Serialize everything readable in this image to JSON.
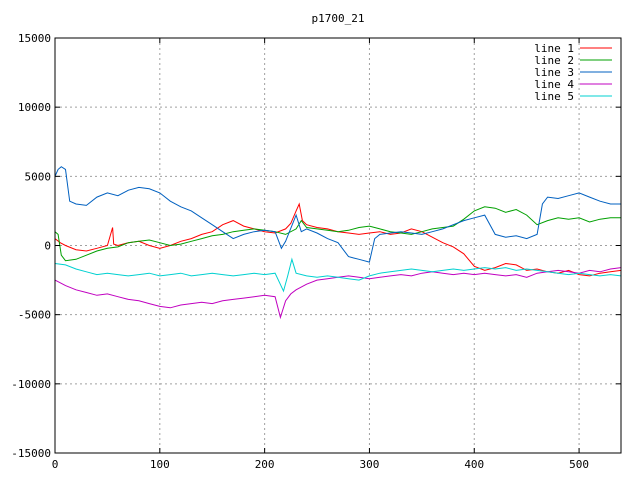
{
  "chart_data": {
    "type": "line",
    "title": "p1700_21",
    "xlim": [
      0,
      540
    ],
    "ylim": [
      -15000,
      15000
    ],
    "x_ticks": [
      0,
      100,
      200,
      300,
      400,
      500
    ],
    "y_ticks": [
      -15000,
      -10000,
      -5000,
      0,
      5000,
      10000,
      15000
    ],
    "grid": true,
    "legend_position": "top-right",
    "series": [
      {
        "name": "line 1",
        "color": "#ff0000",
        "x": [
          0,
          5,
          10,
          20,
          30,
          40,
          50,
          55,
          56,
          60,
          70,
          80,
          90,
          100,
          110,
          120,
          130,
          140,
          150,
          160,
          170,
          180,
          190,
          200,
          210,
          220,
          225,
          230,
          233,
          236,
          240,
          250,
          260,
          270,
          280,
          290,
          300,
          310,
          320,
          330,
          340,
          350,
          360,
          370,
          380,
          390,
          400,
          410,
          420,
          430,
          440,
          450,
          460,
          470,
          480,
          490,
          500,
          510,
          520,
          530,
          540
        ],
        "values": [
          500,
          200,
          0,
          -300,
          -400,
          -200,
          0,
          1300,
          100,
          0,
          200,
          300,
          0,
          -200,
          0,
          300,
          500,
          800,
          1000,
          1500,
          1800,
          1400,
          1200,
          1000,
          900,
          1200,
          1600,
          2500,
          3000,
          1800,
          1500,
          1300,
          1200,
          1000,
          900,
          800,
          900,
          1000,
          800,
          900,
          1200,
          1000,
          600,
          200,
          -100,
          -600,
          -1500,
          -1800,
          -1600,
          -1300,
          -1400,
          -1800,
          -1700,
          -1900,
          -2000,
          -1800,
          -2100,
          -2200,
          -2000,
          -1900,
          -1800
        ]
      },
      {
        "name": "line 2",
        "color": "#00a000",
        "x": [
          0,
          3,
          6,
          10,
          20,
          30,
          40,
          50,
          60,
          70,
          80,
          90,
          100,
          110,
          120,
          130,
          140,
          150,
          160,
          170,
          180,
          190,
          200,
          210,
          220,
          230,
          235,
          240,
          250,
          260,
          270,
          280,
          290,
          300,
          310,
          320,
          330,
          340,
          350,
          360,
          370,
          380,
          390,
          400,
          410,
          420,
          430,
          440,
          450,
          460,
          470,
          480,
          490,
          500,
          510,
          520,
          530,
          540
        ],
        "values": [
          1000,
          800,
          -700,
          -1100,
          -1000,
          -700,
          -400,
          -200,
          -100,
          200,
          300,
          400,
          200,
          0,
          100,
          300,
          500,
          700,
          800,
          1000,
          1100,
          1200,
          1100,
          1000,
          800,
          1200,
          1800,
          1300,
          1200,
          1100,
          1000,
          1100,
          1300,
          1400,
          1200,
          1000,
          900,
          800,
          1000,
          1200,
          1300,
          1400,
          1900,
          2500,
          2800,
          2700,
          2400,
          2600,
          2200,
          1500,
          1800,
          2000,
          1900,
          2000,
          1700,
          1900,
          2000,
          2000
        ]
      },
      {
        "name": "line 3",
        "color": "#0060c0",
        "x": [
          0,
          3,
          6,
          10,
          14,
          20,
          30,
          40,
          50,
          60,
          70,
          80,
          90,
          100,
          110,
          120,
          130,
          140,
          150,
          160,
          170,
          180,
          190,
          200,
          210,
          216,
          220,
          230,
          235,
          240,
          250,
          260,
          270,
          280,
          285,
          290,
          300,
          305,
          310,
          320,
          330,
          340,
          350,
          360,
          370,
          380,
          390,
          400,
          410,
          420,
          430,
          440,
          450,
          460,
          465,
          470,
          480,
          490,
          500,
          510,
          520,
          530,
          540
        ],
        "values": [
          5000,
          5500,
          5700,
          5500,
          3200,
          3000,
          2900,
          3500,
          3800,
          3600,
          4000,
          4200,
          4100,
          3800,
          3200,
          2800,
          2500,
          2000,
          1500,
          1000,
          500,
          800,
          1000,
          1100,
          1000,
          -200,
          300,
          2200,
          1000,
          1200,
          900,
          500,
          200,
          -800,
          -900,
          -1000,
          -1200,
          500,
          800,
          900,
          1000,
          900,
          800,
          1000,
          1200,
          1500,
          1800,
          2000,
          2200,
          800,
          600,
          700,
          500,
          800,
          3000,
          3500,
          3400,
          3600,
          3800,
          3500,
          3200,
          3000,
          3000
        ]
      },
      {
        "name": "line 4",
        "color": "#c000c0",
        "x": [
          0,
          10,
          20,
          30,
          40,
          50,
          60,
          70,
          80,
          90,
          100,
          110,
          120,
          130,
          140,
          150,
          160,
          170,
          180,
          190,
          200,
          210,
          215,
          220,
          225,
          230,
          240,
          250,
          260,
          270,
          280,
          290,
          300,
          310,
          320,
          330,
          340,
          350,
          360,
          370,
          380,
          390,
          400,
          410,
          420,
          430,
          440,
          450,
          460,
          470,
          480,
          490,
          500,
          510,
          520,
          530,
          540
        ],
        "values": [
          -2500,
          -2900,
          -3200,
          -3400,
          -3600,
          -3500,
          -3700,
          -3900,
          -4000,
          -4200,
          -4400,
          -4500,
          -4300,
          -4200,
          -4100,
          -4200,
          -4000,
          -3900,
          -3800,
          -3700,
          -3600,
          -3700,
          -5200,
          -4000,
          -3500,
          -3200,
          -2800,
          -2500,
          -2400,
          -2300,
          -2200,
          -2300,
          -2400,
          -2300,
          -2200,
          -2100,
          -2200,
          -2000,
          -1900,
          -2000,
          -2100,
          -2000,
          -2100,
          -2000,
          -2100,
          -2200,
          -2100,
          -2300,
          -2000,
          -1900,
          -1800,
          -1900,
          -2000,
          -1800,
          -1900,
          -1700,
          -1600
        ]
      },
      {
        "name": "line 5",
        "color": "#00d0d0",
        "x": [
          0,
          10,
          20,
          30,
          40,
          50,
          60,
          70,
          80,
          90,
          100,
          110,
          120,
          130,
          140,
          150,
          160,
          170,
          180,
          190,
          200,
          210,
          218,
          222,
          226,
          230,
          240,
          250,
          260,
          270,
          280,
          290,
          300,
          310,
          320,
          330,
          340,
          350,
          360,
          370,
          380,
          390,
          400,
          410,
          420,
          430,
          440,
          450,
          460,
          470,
          480,
          490,
          500,
          510,
          520,
          530,
          540
        ],
        "values": [
          -1300,
          -1400,
          -1700,
          -1900,
          -2100,
          -2000,
          -2100,
          -2200,
          -2100,
          -2000,
          -2200,
          -2100,
          -2000,
          -2200,
          -2100,
          -2000,
          -2100,
          -2200,
          -2100,
          -2000,
          -2100,
          -2000,
          -3300,
          -2200,
          -1000,
          -2000,
          -2200,
          -2300,
          -2200,
          -2300,
          -2400,
          -2500,
          -2200,
          -2000,
          -1900,
          -1800,
          -1700,
          -1800,
          -1900,
          -1800,
          -1700,
          -1800,
          -1700,
          -1600,
          -1700,
          -1600,
          -1800,
          -1700,
          -1800,
          -1900,
          -2000,
          -2100,
          -2000,
          -2100,
          -2200,
          -2100,
          -2200
        ]
      }
    ]
  }
}
